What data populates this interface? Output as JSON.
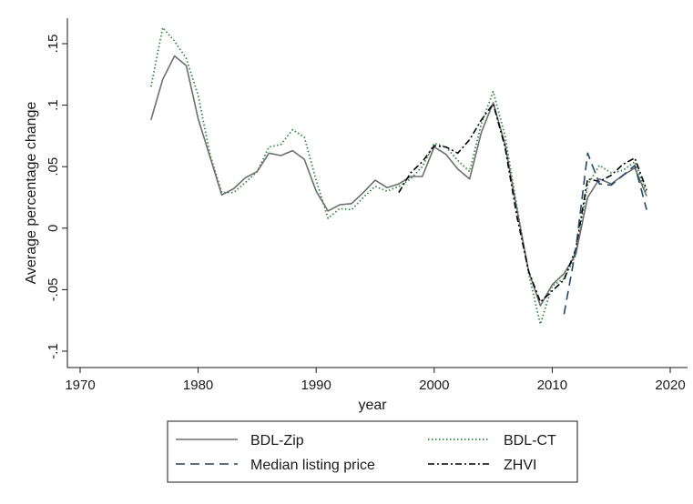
{
  "chart_data": {
    "type": "line",
    "xlabel": "year",
    "ylabel": "Average percentage change",
    "xlim": [
      1970,
      2020
    ],
    "ylim": [
      -0.1,
      0.15
    ],
    "x_ticks": [
      1970,
      1980,
      1990,
      2000,
      2010,
      2020
    ],
    "x_tick_labels": [
      "1970",
      "1980",
      "1990",
      "2000",
      "2010",
      "2020"
    ],
    "y_ticks": [
      -0.1,
      -0.05,
      0,
      0.05,
      0.1,
      0.15
    ],
    "y_tick_labels": [
      "-.1",
      "-.05",
      "0",
      ".05",
      ".1",
      ".15"
    ],
    "grid": false,
    "legend_position": "bottom",
    "series": [
      {
        "name": "BDL-Zip",
        "color": "#6e6e6e",
        "style": "solid",
        "x": [
          1976,
          1977,
          1978,
          1979,
          1980,
          1981,
          1982,
          1983,
          1984,
          1985,
          1986,
          1987,
          1988,
          1989,
          1990,
          1991,
          1992,
          1993,
          1994,
          1995,
          1996,
          1997,
          1998,
          1999,
          2000,
          2001,
          2002,
          2003,
          2004,
          2005,
          2006,
          2007,
          2008,
          2009,
          2010,
          2011,
          2012,
          2013,
          2014,
          2015,
          2016,
          2017,
          2018
        ],
        "y": [
          0.088,
          0.121,
          0.14,
          0.132,
          0.089,
          0.058,
          0.027,
          0.032,
          0.041,
          0.046,
          0.061,
          0.059,
          0.063,
          0.056,
          0.03,
          0.014,
          0.019,
          0.02,
          0.029,
          0.039,
          0.033,
          0.036,
          0.042,
          0.042,
          0.066,
          0.06,
          0.048,
          0.04,
          0.078,
          0.102,
          0.068,
          0.016,
          -0.035,
          -0.063,
          -0.046,
          -0.037,
          -0.021,
          0.025,
          0.04,
          0.036,
          0.043,
          0.049,
          0.026
        ]
      },
      {
        "name": "BDL-CT",
        "color": "#2e8b3a",
        "style": "dotted",
        "x": [
          1976,
          1977,
          1978,
          1979,
          1980,
          1981,
          1982,
          1983,
          1984,
          1985,
          1986,
          1987,
          1988,
          1989,
          1990,
          1991,
          1992,
          1993,
          1994,
          1995,
          1996,
          1997,
          1998,
          1999,
          2000,
          2001,
          2002,
          2003,
          2004,
          2005,
          2006,
          2007,
          2008,
          2009,
          2010,
          2011,
          2012,
          2013,
          2014,
          2015,
          2016,
          2017,
          2018
        ],
        "y": [
          0.115,
          0.163,
          0.152,
          0.138,
          0.108,
          0.06,
          0.029,
          0.029,
          0.037,
          0.046,
          0.066,
          0.068,
          0.08,
          0.074,
          0.039,
          0.008,
          0.016,
          0.015,
          0.025,
          0.034,
          0.03,
          0.034,
          0.04,
          0.05,
          0.069,
          0.066,
          0.055,
          0.046,
          0.085,
          0.111,
          0.075,
          0.018,
          -0.037,
          -0.078,
          -0.047,
          -0.041,
          -0.022,
          0.035,
          0.051,
          0.045,
          0.047,
          0.054,
          0.028
        ]
      },
      {
        "name": "Median listing price",
        "color": "#23476b",
        "style": "dashed",
        "x": [
          2011,
          2012,
          2013,
          2014,
          2015,
          2016,
          2017,
          2018
        ],
        "y": [
          -0.07,
          -0.017,
          0.061,
          0.036,
          0.035,
          0.043,
          0.051,
          0.015
        ]
      },
      {
        "name": "ZHVI",
        "color": "#000000",
        "style": "dashdot",
        "x": [
          1997,
          1998,
          1999,
          2000,
          2001,
          2002,
          2003,
          2004,
          2005,
          2006,
          2007,
          2008,
          2009,
          2010,
          2011,
          2012,
          2013,
          2014,
          2015,
          2016,
          2017,
          2018
        ],
        "y": [
          0.029,
          0.045,
          0.054,
          0.067,
          0.066,
          0.061,
          0.072,
          0.088,
          0.101,
          0.066,
          0.01,
          -0.035,
          -0.06,
          -0.051,
          -0.042,
          -0.017,
          0.04,
          0.038,
          0.043,
          0.052,
          0.057,
          0.031
        ]
      }
    ]
  },
  "legend": {
    "items": [
      {
        "label": "BDL-Zip"
      },
      {
        "label": "BDL-CT"
      },
      {
        "label": "Median listing price"
      },
      {
        "label": "ZHVI"
      }
    ]
  }
}
